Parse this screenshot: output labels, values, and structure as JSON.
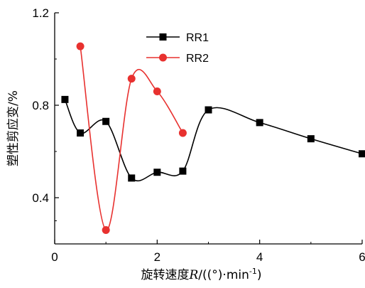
{
  "chart_data": {
    "type": "line",
    "xlabel_prefix": "旋转速度",
    "xlabel_var": "R",
    "xlabel_mid": "/((°)·min",
    "xlabel_sup": "-1",
    "xlabel_end": ")",
    "ylabel": "塑性剪应变/%",
    "xlim": [
      0,
      6
    ],
    "ylim": [
      0.2,
      1.2
    ],
    "x_ticks": [
      0,
      2,
      4,
      6
    ],
    "y_ticks": [
      0.4,
      0.8,
      1.2
    ],
    "x_tick_labels": [
      "0",
      "2",
      "4",
      "6"
    ],
    "y_tick_labels": [
      "0.4",
      "0.8",
      "1.2"
    ],
    "grid": false,
    "legend_position": "top-center",
    "series": [
      {
        "name": "RR1",
        "color": "#000000",
        "marker": "square",
        "x": [
          0.2,
          0.5,
          1.0,
          1.5,
          2.0,
          2.5,
          3.0,
          4.0,
          5.0,
          6.0
        ],
        "y": [
          0.825,
          0.68,
          0.73,
          0.485,
          0.51,
          0.515,
          0.78,
          0.725,
          0.655,
          0.59
        ]
      },
      {
        "name": "RR2",
        "color": "#e8312f",
        "marker": "circle",
        "x": [
          0.5,
          1.0,
          1.5,
          2.0,
          2.5
        ],
        "y": [
          1.055,
          0.26,
          0.915,
          0.86,
          0.68
        ]
      }
    ]
  }
}
